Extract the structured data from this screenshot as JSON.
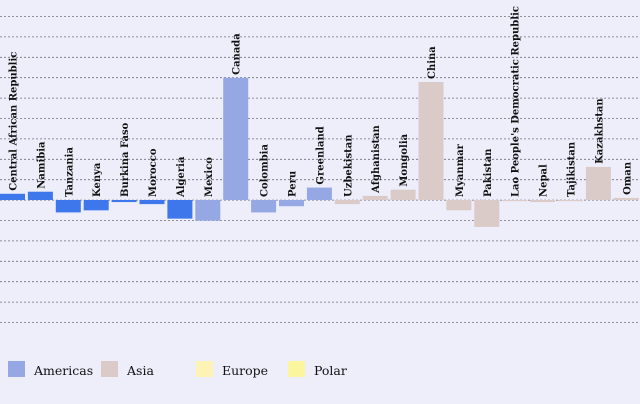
{
  "chart_data": {
    "type": "bar",
    "title": "",
    "xlabel": "",
    "ylabel": "",
    "grid": true,
    "legend_position": "bottom-left",
    "zero_line": true,
    "ylim": [
      -70,
      100
    ],
    "categories": [
      "Central African Republic",
      "Namibia",
      "Tanzania",
      "Kenya",
      "Burkina Faso",
      "Morocco",
      "Algeria",
      "Mexico",
      "Canada",
      "Colombia",
      "Peru",
      "Greenland",
      "Uzbekistan",
      "Afghanistan",
      "Mongolia",
      "China",
      "Myanmar",
      "Pakistan",
      "Lao People's Democratic Republic",
      "Nepal",
      "Tajikistan",
      "Kazakhstan",
      "Oman"
    ],
    "values": [
      3,
      4,
      -6,
      -5,
      -1,
      -2,
      -9,
      -10,
      59,
      -6,
      -3,
      6,
      -2,
      2,
      5,
      57,
      -5,
      -13,
      0,
      -1,
      0,
      16,
      1
    ],
    "bar_colors": [
      "#3e76ec",
      "#3e76ec",
      "#3e76ec",
      "#3e76ec",
      "#3e76ec",
      "#3e76ec",
      "#3e76ec",
      "#96a8e3",
      "#96a8e3",
      "#96a8e3",
      "#96a8e3",
      "#96a8e3",
      "#dacbc8",
      "#dacbc8",
      "#dacbc8",
      "#dacbc8",
      "#dacbc8",
      "#dacbc8",
      "#dacbc8",
      "#dacbc8",
      "#dacbc8",
      "#dacbc8",
      "#dacbc8"
    ],
    "legend": [
      {
        "name": "Americas",
        "color": "#96a8e3"
      },
      {
        "name": "Asia",
        "color": "#dacbc8"
      },
      {
        "name": "Europe",
        "color": "#fcf3b4"
      },
      {
        "name": "Polar",
        "color": "#fbf69d"
      }
    ]
  }
}
